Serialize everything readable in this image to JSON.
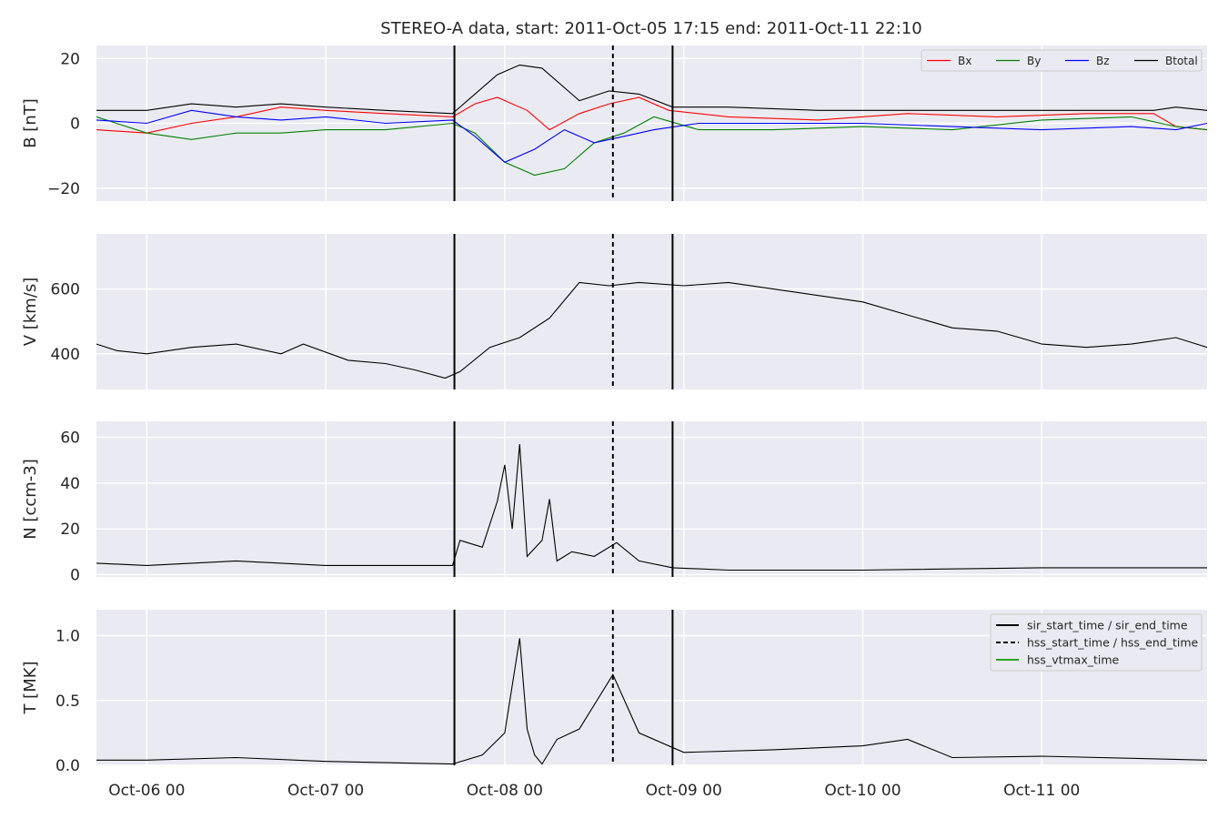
{
  "title": "STEREO-A data, start: 2011-Oct-05 17:15  end: 2011-Oct-11 22:10",
  "x_axis": {
    "type": "datetime",
    "range": [
      "2011-10-05 17:15",
      "2011-10-11 22:10"
    ],
    "ticks": [
      "2011-10-06 00:00",
      "2011-10-07 00:00",
      "2011-10-08 00:00",
      "2011-10-09 00:00",
      "2011-10-10 00:00",
      "2011-10-11 00:00"
    ],
    "tick_labels": [
      "Oct-06 00",
      "Oct-07 00",
      "Oct-08 00",
      "Oct-09 00",
      "Oct-10 00",
      "Oct-11 00"
    ]
  },
  "colors": {
    "panel_bg": "#eaeaf2",
    "grid": "#ffffff",
    "text": "#262626",
    "bx": "#ff0000",
    "by": "#008000",
    "bz": "#0000ff",
    "btotal": "#000000",
    "vtmax": "#2ca02c"
  },
  "events": {
    "sir_start_time": "2011-10-07 17:15",
    "hss_start_time": "2011-10-08 14:30",
    "sir_end_time": "2011-10-08 22:30"
  },
  "legend_field": {
    "placement": "top-right",
    "entries": [
      "Bx",
      "By",
      "Bz",
      "Btotal"
    ]
  },
  "legend_events": {
    "placement": "top-right",
    "entries": [
      "sir_start_time / sir_end_time",
      "hss_start_time / hss_end_time",
      "hss_vtmax_time"
    ]
  },
  "chart_data": [
    {
      "type": "line",
      "panel": "B",
      "ylabel": "B [nT]",
      "ylim": [
        -24,
        24
      ],
      "yticks": [
        -20,
        0,
        20
      ],
      "ytick_labels": [
        "−20",
        "0",
        "20"
      ],
      "grid": true,
      "legend": "top-right",
      "series": [
        {
          "name": "Bx",
          "color": "#ff0000",
          "x": [
            "2011-10-05 17:15",
            "2011-10-06 00:00",
            "2011-10-06 06:00",
            "2011-10-06 12:00",
            "2011-10-06 18:00",
            "2011-10-07 00:00",
            "2011-10-07 08:00",
            "2011-10-07 17:00",
            "2011-10-07 20:00",
            "2011-10-07 23:00",
            "2011-10-08 03:00",
            "2011-10-08 06:00",
            "2011-10-08 10:00",
            "2011-10-08 14:00",
            "2011-10-08 18:00",
            "2011-10-08 22:00",
            "2011-10-09 06:00",
            "2011-10-09 18:00",
            "2011-10-10 06:00",
            "2011-10-10 18:00",
            "2011-10-11 06:00",
            "2011-10-11 15:00",
            "2011-10-11 18:00",
            "2011-10-11 22:10"
          ],
          "y": [
            -2,
            -3,
            0,
            2,
            5,
            4,
            3,
            2,
            6,
            8,
            4,
            -2,
            3,
            6,
            8,
            4,
            2,
            1,
            3,
            2,
            3,
            3,
            -1,
            -2
          ]
        },
        {
          "name": "By",
          "color": "#008000",
          "x": [
            "2011-10-05 17:15",
            "2011-10-06 00:00",
            "2011-10-06 06:00",
            "2011-10-06 12:00",
            "2011-10-06 18:00",
            "2011-10-07 00:00",
            "2011-10-07 08:00",
            "2011-10-07 17:00",
            "2011-10-07 20:00",
            "2011-10-08 00:00",
            "2011-10-08 04:00",
            "2011-10-08 08:00",
            "2011-10-08 12:00",
            "2011-10-08 16:00",
            "2011-10-08 20:00",
            "2011-10-09 02:00",
            "2011-10-09 12:00",
            "2011-10-10 00:00",
            "2011-10-10 12:00",
            "2011-10-11 00:00",
            "2011-10-11 12:00",
            "2011-10-11 18:00",
            "2011-10-11 22:10"
          ],
          "y": [
            2,
            -3,
            -5,
            -3,
            -3,
            -2,
            -2,
            0,
            -3,
            -12,
            -16,
            -14,
            -6,
            -3,
            2,
            -2,
            -2,
            -1,
            -2,
            1,
            2,
            -1,
            -2
          ]
        },
        {
          "name": "Bz",
          "color": "#0000ff",
          "x": [
            "2011-10-05 17:15",
            "2011-10-06 00:00",
            "2011-10-06 06:00",
            "2011-10-06 12:00",
            "2011-10-06 18:00",
            "2011-10-07 00:00",
            "2011-10-07 08:00",
            "2011-10-07 17:00",
            "2011-10-07 20:00",
            "2011-10-08 00:00",
            "2011-10-08 04:00",
            "2011-10-08 08:00",
            "2011-10-08 12:00",
            "2011-10-08 16:00",
            "2011-10-08 20:00",
            "2011-10-09 02:00",
            "2011-10-09 12:00",
            "2011-10-10 00:00",
            "2011-10-10 12:00",
            "2011-10-11 00:00",
            "2011-10-11 12:00",
            "2011-10-11 18:00",
            "2011-10-11 22:10"
          ],
          "y": [
            1,
            0,
            4,
            2,
            1,
            2,
            0,
            1,
            -4,
            -12,
            -8,
            -2,
            -6,
            -4,
            -2,
            0,
            0,
            0,
            -1,
            -2,
            -1,
            -2,
            0
          ]
        },
        {
          "name": "Btotal",
          "color": "#000000",
          "x": [
            "2011-10-05 17:15",
            "2011-10-06 00:00",
            "2011-10-06 06:00",
            "2011-10-06 12:00",
            "2011-10-06 18:00",
            "2011-10-07 00:00",
            "2011-10-07 08:00",
            "2011-10-07 17:00",
            "2011-10-07 20:00",
            "2011-10-07 23:00",
            "2011-10-08 02:00",
            "2011-10-08 05:00",
            "2011-10-08 10:00",
            "2011-10-08 14:00",
            "2011-10-08 18:00",
            "2011-10-08 22:30",
            "2011-10-09 06:00",
            "2011-10-09 18:00",
            "2011-10-10 06:00",
            "2011-10-10 18:00",
            "2011-10-11 06:00",
            "2011-10-11 15:00",
            "2011-10-11 18:00",
            "2011-10-11 22:10"
          ],
          "y": [
            4,
            4,
            6,
            5,
            6,
            5,
            4,
            3,
            9,
            15,
            18,
            17,
            7,
            10,
            9,
            5,
            5,
            4,
            4,
            4,
            4,
            4,
            5,
            4
          ]
        }
      ]
    },
    {
      "type": "line",
      "panel": "V",
      "ylabel": "V [km/s]",
      "ylim": [
        290,
        770
      ],
      "yticks": [
        400,
        600
      ],
      "ytick_labels": [
        "400",
        "600"
      ],
      "grid": true,
      "series": [
        {
          "color": "#000000",
          "x": [
            "2011-10-05 17:15",
            "2011-10-05 20:00",
            "2011-10-06 00:00",
            "2011-10-06 06:00",
            "2011-10-06 12:00",
            "2011-10-06 18:00",
            "2011-10-06 21:00",
            "2011-10-07 03:00",
            "2011-10-07 08:00",
            "2011-10-07 12:00",
            "2011-10-07 16:00",
            "2011-10-07 18:00",
            "2011-10-07 22:00",
            "2011-10-08 02:00",
            "2011-10-08 06:00",
            "2011-10-08 10:00",
            "2011-10-08 14:00",
            "2011-10-08 18:00",
            "2011-10-09 00:00",
            "2011-10-09 06:00",
            "2011-10-09 12:00",
            "2011-10-09 18:00",
            "2011-10-10 00:00",
            "2011-10-10 06:00",
            "2011-10-10 12:00",
            "2011-10-10 18:00",
            "2011-10-11 00:00",
            "2011-10-11 06:00",
            "2011-10-11 12:00",
            "2011-10-11 18:00",
            "2011-10-11 22:10"
          ],
          "y": [
            430,
            410,
            400,
            420,
            430,
            400,
            430,
            380,
            370,
            350,
            325,
            345,
            420,
            450,
            510,
            620,
            610,
            620,
            610,
            620,
            600,
            580,
            560,
            520,
            480,
            470,
            430,
            420,
            430,
            450,
            420
          ]
        }
      ]
    },
    {
      "type": "line",
      "panel": "N",
      "ylabel": "N [ccm-3]",
      "ylim": [
        -1,
        67
      ],
      "yticks": [
        0,
        20,
        40,
        60
      ],
      "ytick_labels": [
        "0",
        "20",
        "40",
        "60"
      ],
      "grid": true,
      "series": [
        {
          "color": "#000000",
          "x": [
            "2011-10-05 17:15",
            "2011-10-06 00:00",
            "2011-10-06 12:00",
            "2011-10-07 00:00",
            "2011-10-07 12:00",
            "2011-10-07 17:00",
            "2011-10-07 18:00",
            "2011-10-07 21:00",
            "2011-10-07 23:00",
            "2011-10-08 00:00",
            "2011-10-08 01:00",
            "2011-10-08 02:00",
            "2011-10-08 03:00",
            "2011-10-08 05:00",
            "2011-10-08 06:00",
            "2011-10-08 07:00",
            "2011-10-08 09:00",
            "2011-10-08 12:00",
            "2011-10-08 15:00",
            "2011-10-08 18:00",
            "2011-10-08 22:30",
            "2011-10-09 06:00",
            "2011-10-10 00:00",
            "2011-10-11 00:00",
            "2011-10-11 22:10"
          ],
          "y": [
            5,
            4,
            6,
            4,
            4,
            4,
            15,
            12,
            32,
            48,
            20,
            57,
            8,
            15,
            33,
            6,
            10,
            8,
            14,
            6,
            3,
            2,
            2,
            3,
            3
          ]
        }
      ]
    },
    {
      "type": "line",
      "panel": "T",
      "ylabel": "T [MK]",
      "ylim": [
        0,
        1.2
      ],
      "yticks": [
        0.0,
        0.5,
        1.0
      ],
      "ytick_labels": [
        "0.0",
        "0.5",
        "1.0"
      ],
      "grid": true,
      "legend": "top-right",
      "series": [
        {
          "color": "#000000",
          "x": [
            "2011-10-05 17:15",
            "2011-10-06 00:00",
            "2011-10-06 12:00",
            "2011-10-07 00:00",
            "2011-10-07 17:00",
            "2011-10-07 21:00",
            "2011-10-08 00:00",
            "2011-10-08 02:00",
            "2011-10-08 03:00",
            "2011-10-08 04:00",
            "2011-10-08 05:00",
            "2011-10-08 07:00",
            "2011-10-08 10:00",
            "2011-10-08 14:30",
            "2011-10-08 18:00",
            "2011-10-09 00:00",
            "2011-10-09 12:00",
            "2011-10-10 00:00",
            "2011-10-10 06:00",
            "2011-10-10 12:00",
            "2011-10-11 00:00",
            "2011-10-11 22:10"
          ],
          "y": [
            0.04,
            0.04,
            0.06,
            0.03,
            0.01,
            0.08,
            0.25,
            0.98,
            0.28,
            0.08,
            0.01,
            0.2,
            0.28,
            0.7,
            0.25,
            0.1,
            0.12,
            0.15,
            0.2,
            0.06,
            0.07,
            0.04
          ]
        }
      ]
    }
  ]
}
